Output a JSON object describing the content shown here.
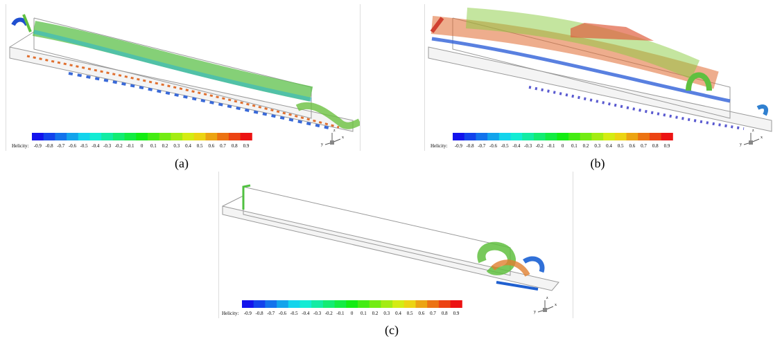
{
  "panels": [
    {
      "label": "(a)",
      "colorbar": {
        "title": "Helicity:",
        "ticks": [
          -0.9,
          -0.8,
          -0.7,
          -0.6,
          -0.5,
          -0.4,
          -0.3,
          -0.2,
          -0.1,
          0,
          0.1,
          0.2,
          0.3,
          0.4,
          0.5,
          0.6,
          0.7,
          0.8,
          0.9
        ]
      },
      "axes": [
        "z",
        "y",
        "x"
      ]
    },
    {
      "label": "(b)",
      "colorbar": {
        "title": "Helicity:",
        "ticks": [
          -0.9,
          -0.8,
          -0.7,
          -0.6,
          -0.5,
          -0.4,
          -0.3,
          -0.2,
          -0.1,
          0,
          0.1,
          0.2,
          0.3,
          0.4,
          0.5,
          0.6,
          0.7,
          0.8,
          0.9
        ]
      },
      "axes": [
        "z",
        "y",
        "x"
      ]
    },
    {
      "label": "(c)",
      "colorbar": {
        "title": "Helicity:",
        "ticks": [
          -0.9,
          -0.8,
          -0.7,
          -0.6,
          -0.5,
          -0.4,
          -0.3,
          -0.2,
          -0.1,
          0,
          0.1,
          0.2,
          0.3,
          0.4,
          0.5,
          0.6,
          0.7,
          0.8,
          0.9
        ]
      },
      "axes": [
        "z",
        "y",
        "x"
      ]
    }
  ]
}
